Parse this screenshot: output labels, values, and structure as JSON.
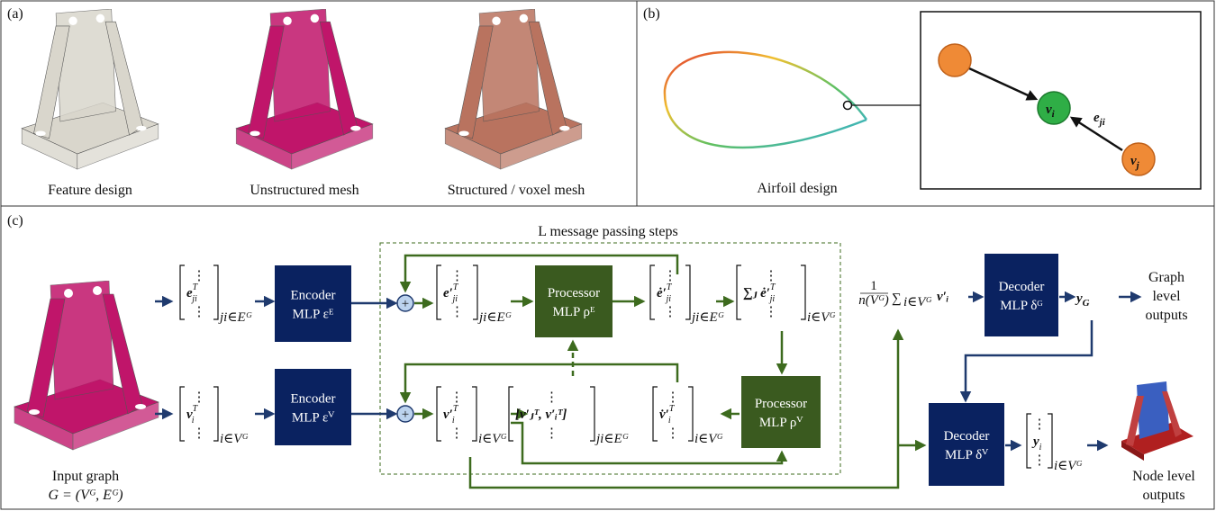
{
  "panel_a": {
    "label": "(a)",
    "captions": [
      "Feature design",
      "Unstructured mesh",
      "Structured / voxel mesh"
    ]
  },
  "panel_b": {
    "label": "(b)",
    "caption": "Airfoil design",
    "nodes": [
      {
        "base": "v",
        "sub": "i"
      },
      {
        "base": "v",
        "sub": "j"
      }
    ],
    "edge": {
      "base": "e",
      "sub": "ji"
    }
  },
  "panel_c": {
    "label": "(c)",
    "loop_title": "L message passing steps",
    "vdots": "⋮",
    "input": {
      "title": "Input graph",
      "graph": "G = (Vᴳ, Eᴳ)"
    },
    "matrices": [
      {
        "base": "e",
        "sub": "ji",
        "sup": "T",
        "index": "ji∈Eᴳ"
      },
      {
        "base": "v",
        "sub": "i",
        "sup": "T",
        "index": "i∈Vᴳ"
      },
      {
        "base": "e′",
        "sub": "ji",
        "sup": "T",
        "index": "ji∈Eᴳ"
      },
      {
        "base": "ė′",
        "sub": "ji",
        "sup": "T",
        "index": "ji∈Eᴳ"
      },
      {
        "base": "∑ⱼ ė′",
        "sub": "ji",
        "sup": "T",
        "index": "i∈Vᴳ"
      },
      {
        "base": "v′",
        "sub": "i",
        "sup": "T",
        "index": "i∈Vᴳ"
      },
      {
        "base": "[v′ⱼᵀ, v′ᵢᵀ]",
        "index": "ji∈Eᴳ"
      },
      {
        "base": "v̇′",
        "sub": "i",
        "sup": "T",
        "index": "i∈Vᴳ"
      },
      {
        "base": "y",
        "sub": "i",
        "index": "i∈Vᴳ"
      }
    ],
    "blocks": [
      {
        "name": "Encoder",
        "mlp": "MLP εᴱ"
      },
      {
        "name": "Encoder",
        "mlp": "MLP εⱽ"
      },
      {
        "name": "Processor",
        "mlp": "MLP ρᴱ"
      },
      {
        "name": "Processor",
        "mlp": "MLP ρⱽ"
      },
      {
        "name": "Decoder",
        "mlp": "MLP δᴳ"
      },
      {
        "name": "Decoder",
        "mlp": "MLP δⱽ"
      }
    ],
    "pooling": {
      "numerator": "1",
      "denominator": "n(Vᴳ)",
      "sum": "∑",
      "sum_index": "i∈Vᴳ",
      "term": "v′ᵢ"
    },
    "graph_output": {
      "base": "y",
      "sub": "G"
    },
    "graph_outputs_label": [
      "Graph",
      "level",
      "outputs"
    ],
    "node_outputs_label": [
      "Node level",
      "outputs"
    ]
  }
}
